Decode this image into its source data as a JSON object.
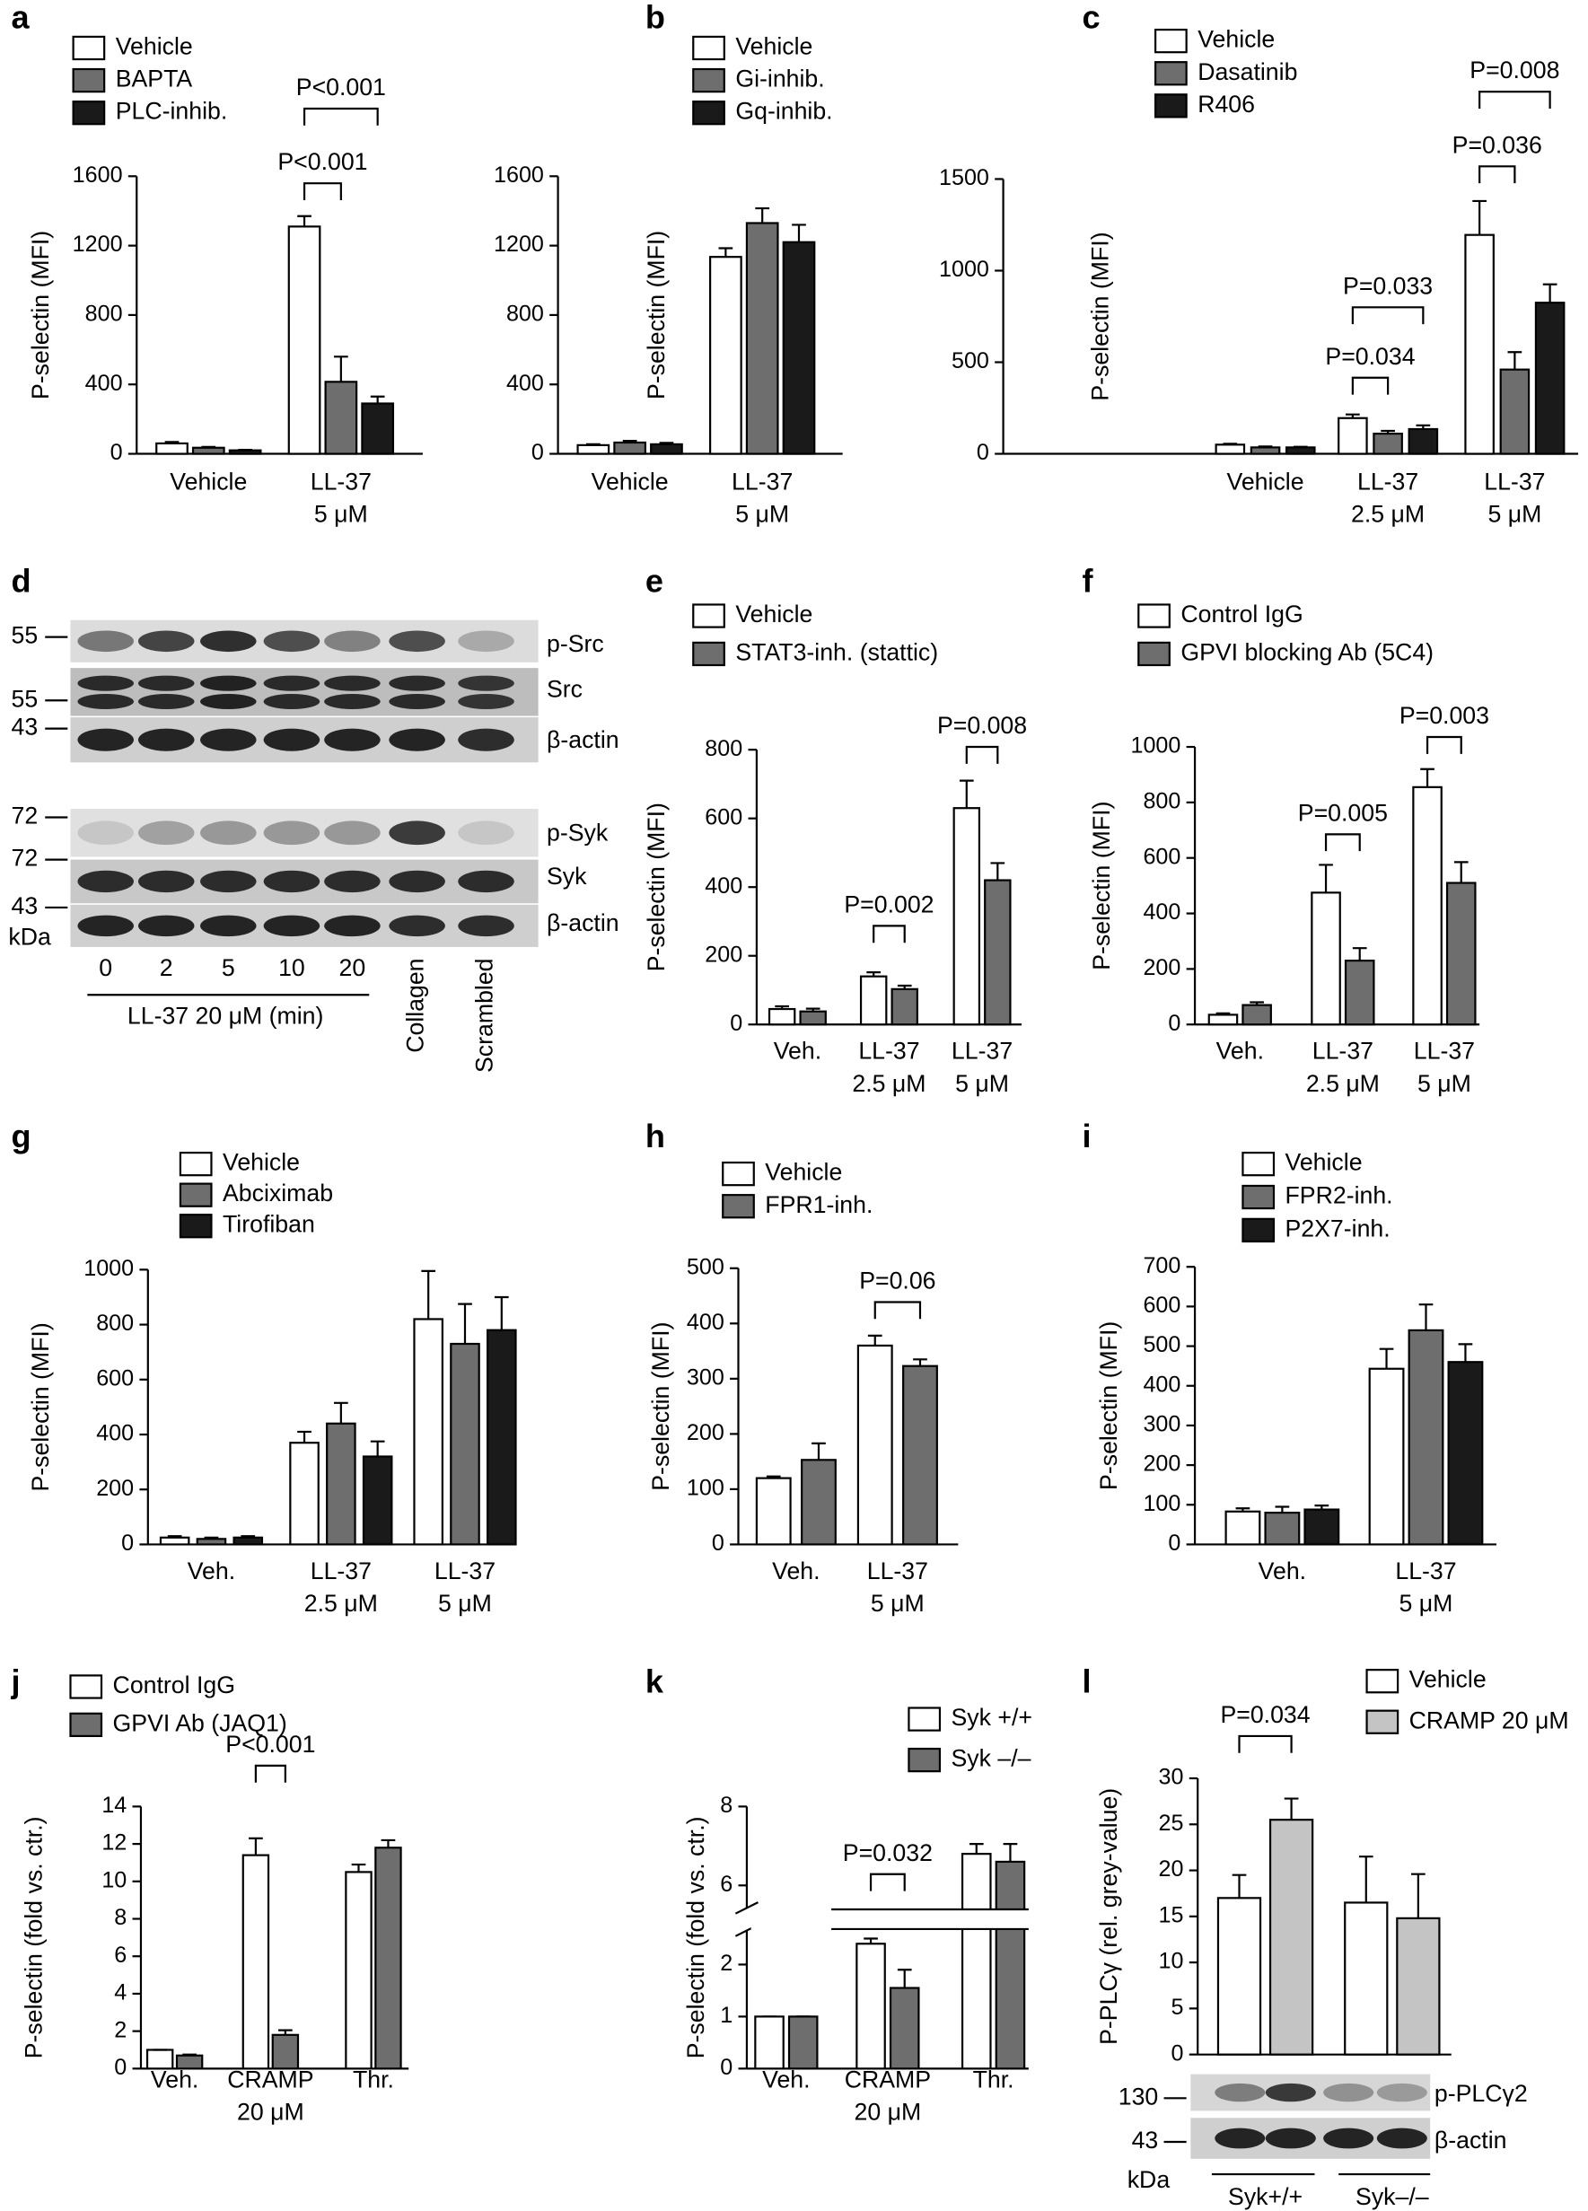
{
  "chart_data": [
    {
      "type": "bar",
      "label": "a",
      "ylabel": "P-selectin (MFI)",
      "categories": [
        [
          "Vehicle"
        ],
        [
          "LL-37",
          "5 μM"
        ]
      ],
      "series": [
        {
          "name": "Vehicle",
          "color": "#ffffff",
          "values": [
            60,
            1310
          ],
          "errors": [
            8,
            60
          ]
        },
        {
          "name": "BAPTA",
          "color": "#6e6e6e",
          "values": [
            35,
            415
          ],
          "errors": [
            5,
            145
          ]
        },
        {
          "name": "PLC-inhib.",
          "color": "#1a1a1a",
          "values": [
            20,
            290
          ],
          "errors": [
            3,
            40
          ]
        }
      ],
      "ylim": [
        0,
        1600
      ],
      "yticks": [
        0,
        400,
        800,
        1200,
        1600
      ],
      "annotations": [
        "P<0.001",
        "P<0.001"
      ]
    },
    {
      "type": "bar",
      "label": "b",
      "ylabel": "P-selectin (MFI)",
      "categories": [
        [
          "Vehicle"
        ],
        [
          "LL-37",
          "5 μM"
        ]
      ],
      "series": [
        {
          "name": "Vehicle",
          "color": "#ffffff",
          "values": [
            50,
            1135
          ],
          "errors": [
            5,
            50
          ]
        },
        {
          "name": "Gi-inhib.",
          "color": "#6e6e6e",
          "values": [
            65,
            1330
          ],
          "errors": [
            10,
            85
          ]
        },
        {
          "name": "Gq-inhib.",
          "color": "#1a1a1a",
          "values": [
            55,
            1220
          ],
          "errors": [
            8,
            100
          ]
        }
      ],
      "ylim": [
        0,
        1600
      ],
      "yticks": [
        0,
        400,
        800,
        1200,
        1600
      ]
    },
    {
      "type": "bar",
      "label": "c",
      "ylabel": "P-selectin (MFI)",
      "categories": [
        [
          "Vehicle"
        ],
        [
          "LL-37",
          "2.5 μM"
        ],
        [
          "LL-37",
          "5 μM"
        ]
      ],
      "series": [
        {
          "name": "Vehicle",
          "color": "#ffffff",
          "values": [
            50,
            195,
            1195
          ],
          "errors": [
            5,
            20,
            185
          ]
        },
        {
          "name": "Dasatinib",
          "color": "#6e6e6e",
          "values": [
            35,
            110,
            460
          ],
          "errors": [
            5,
            15,
            95
          ]
        },
        {
          "name": "R406",
          "color": "#1a1a1a",
          "values": [
            35,
            135,
            825
          ],
          "errors": [
            3,
            20,
            100
          ]
        }
      ],
      "ylim": [
        0,
        1500
      ],
      "yticks": [
        0,
        500,
        1000,
        1500
      ],
      "annotations": [
        "P=0.008",
        "P=0.036",
        "P=0.033",
        "P=0.034"
      ]
    },
    {
      "type": "blot",
      "label": "d",
      "mw_markers": [
        "55",
        "55",
        "43",
        "72",
        "72",
        "43"
      ],
      "mw_unit": "kDa",
      "bands": [
        "p-Src",
        "Src",
        "β-actin",
        "p-Syk",
        "Syk",
        "β-actin"
      ],
      "lanes": [
        "0",
        "2",
        "5",
        "10",
        "20",
        "Collagen",
        "Scrambled"
      ],
      "lane_group": "LL-37 20 μM (min)"
    },
    {
      "type": "bar",
      "label": "e",
      "ylabel": "P-selectin (MFI)",
      "categories": [
        [
          "Veh."
        ],
        [
          "LL-37",
          "2.5 μM"
        ],
        [
          "LL-37",
          "5 μM"
        ]
      ],
      "series": [
        {
          "name": "Vehicle",
          "color": "#ffffff",
          "values": [
            45,
            140,
            630
          ],
          "errors": [
            8,
            12,
            80
          ]
        },
        {
          "name": "STAT3-inh. (stattic)",
          "color": "#6e6e6e",
          "values": [
            38,
            103,
            420
          ],
          "errors": [
            8,
            10,
            50
          ]
        }
      ],
      "ylim": [
        0,
        800
      ],
      "yticks": [
        0,
        200,
        400,
        600,
        800
      ],
      "annotations": [
        "P=0.008",
        "P=0.002"
      ]
    },
    {
      "type": "bar",
      "label": "f",
      "ylabel": "P-selectin (MFI)",
      "categories": [
        [
          "Veh."
        ],
        [
          "LL-37",
          "2.5 μM"
        ],
        [
          "LL-37",
          "5 μM"
        ]
      ],
      "series": [
        {
          "name": "Control IgG",
          "color": "#ffffff",
          "values": [
            35,
            475,
            855
          ],
          "errors": [
            5,
            100,
            65
          ]
        },
        {
          "name": "GPVI blocking Ab (5C4)",
          "color": "#6e6e6e",
          "values": [
            70,
            230,
            510
          ],
          "errors": [
            10,
            45,
            75
          ]
        }
      ],
      "ylim": [
        0,
        1000
      ],
      "yticks": [
        0,
        200,
        400,
        600,
        800,
        1000
      ],
      "annotations": [
        "P=0.003",
        "P=0.005"
      ]
    },
    {
      "type": "bar",
      "label": "g",
      "ylabel": "P-selectin (MFI)",
      "categories": [
        [
          "Veh."
        ],
        [
          "LL-37",
          "2.5 μM"
        ],
        [
          "LL-37",
          "5 μM"
        ]
      ],
      "series": [
        {
          "name": "Vehicle",
          "color": "#ffffff",
          "values": [
            25,
            370,
            820
          ],
          "errors": [
            5,
            40,
            175
          ]
        },
        {
          "name": "Abciximab",
          "color": "#6e6e6e",
          "values": [
            20,
            440,
            730
          ],
          "errors": [
            5,
            75,
            145
          ]
        },
        {
          "name": "Tirofiban",
          "color": "#1a1a1a",
          "values": [
            25,
            320,
            780
          ],
          "errors": [
            5,
            55,
            120
          ]
        }
      ],
      "ylim": [
        0,
        1000
      ],
      "yticks": [
        0,
        200,
        400,
        600,
        800,
        1000
      ]
    },
    {
      "type": "bar",
      "label": "h",
      "ylabel": "P-selectin (MFI)",
      "categories": [
        [
          "Veh."
        ],
        [
          "LL-37",
          "5 μM"
        ]
      ],
      "series": [
        {
          "name": "Vehicle",
          "color": "#ffffff",
          "values": [
            120,
            360
          ],
          "errors": [
            3,
            18
          ]
        },
        {
          "name": "FPR1-inh.",
          "color": "#6e6e6e",
          "values": [
            153,
            323
          ],
          "errors": [
            30,
            12
          ]
        }
      ],
      "ylim": [
        0,
        500
      ],
      "yticks": [
        0,
        100,
        200,
        300,
        400,
        500
      ],
      "annotations": [
        "P=0.06"
      ]
    },
    {
      "type": "bar",
      "label": "i",
      "ylabel": "P-selectin (MFI)",
      "categories": [
        [
          "Veh."
        ],
        [
          "LL-37",
          "5 μM"
        ]
      ],
      "series": [
        {
          "name": "Vehicle",
          "color": "#ffffff",
          "values": [
            83,
            443
          ],
          "errors": [
            8,
            50
          ]
        },
        {
          "name": "FPR2-inh.",
          "color": "#6e6e6e",
          "values": [
            80,
            540
          ],
          "errors": [
            15,
            65
          ]
        },
        {
          "name": "P2X7-inh.",
          "color": "#1a1a1a",
          "values": [
            88,
            460
          ],
          "errors": [
            10,
            45
          ]
        }
      ],
      "ylim": [
        0,
        700
      ],
      "yticks": [
        0,
        100,
        200,
        300,
        400,
        500,
        600,
        700
      ]
    },
    {
      "type": "bar",
      "label": "j",
      "ylabel": "P-selectin (fold vs. ctr.)",
      "categories": [
        [
          "Veh."
        ],
        [
          "CRAMP",
          "20 μM"
        ],
        [
          "Thr."
        ]
      ],
      "series": [
        {
          "name": "Control IgG",
          "color": "#ffffff",
          "values": [
            1.0,
            11.4,
            10.5
          ],
          "errors": [
            0,
            0.9,
            0.4
          ]
        },
        {
          "name": "GPVI Ab (JAQ1)",
          "color": "#6e6e6e",
          "values": [
            0.7,
            1.8,
            11.8
          ],
          "errors": [
            0.05,
            0.25,
            0.4
          ]
        }
      ],
      "ylim": [
        0,
        14
      ],
      "yticks": [
        0,
        2,
        4,
        6,
        8,
        10,
        12,
        14
      ],
      "annotations": [
        "P<0.001"
      ]
    },
    {
      "type": "bar",
      "label": "k",
      "ylabel": "P-selectin (fold vs. ctr.)",
      "categories": [
        [
          "Veh."
        ],
        [
          "CRAMP",
          "20 μM"
        ],
        [
          "Thr."
        ]
      ],
      "series": [
        {
          "name": "Syk +/+",
          "color": "#ffffff",
          "values": [
            1,
            2.4,
            6.8
          ],
          "errors": [
            0,
            0.1,
            0.25
          ]
        },
        {
          "name": "Syk –/–",
          "color": "#6e6e6e",
          "values": [
            1,
            1.55,
            6.6
          ],
          "errors": [
            0,
            0.35,
            0.45
          ]
        }
      ],
      "ylim": [
        0,
        8
      ],
      "ybreak": [
        2.6,
        5.5
      ],
      "yticks": [
        0,
        1,
        2,
        6,
        8
      ],
      "annotations": [
        "P=0.032"
      ]
    },
    {
      "type": "bar",
      "label": "l",
      "ylabel": "P-PLCγ (rel. grey-value)",
      "categories": [
        [
          "Syk+/+"
        ],
        [
          "Syk–/–"
        ]
      ],
      "series": [
        {
          "name": "Vehicle",
          "color": "#ffffff",
          "values": [
            17,
            16.5
          ],
          "errors": [
            2.5,
            5
          ]
        },
        {
          "name": "CRAMP 20 μM",
          "color": "#c4c4c4",
          "values": [
            25.5,
            14.8
          ],
          "errors": [
            2.3,
            4.8
          ]
        }
      ],
      "ylim": [
        0,
        30
      ],
      "yticks": [
        0,
        5,
        10,
        15,
        20,
        25,
        30
      ],
      "annotations": [
        "P=0.034"
      ],
      "blot": {
        "mw_markers": [
          "130",
          "43"
        ],
        "mw_unit": "kDa",
        "bands": [
          "p-PLCγ2",
          "β-actin"
        ]
      }
    }
  ]
}
